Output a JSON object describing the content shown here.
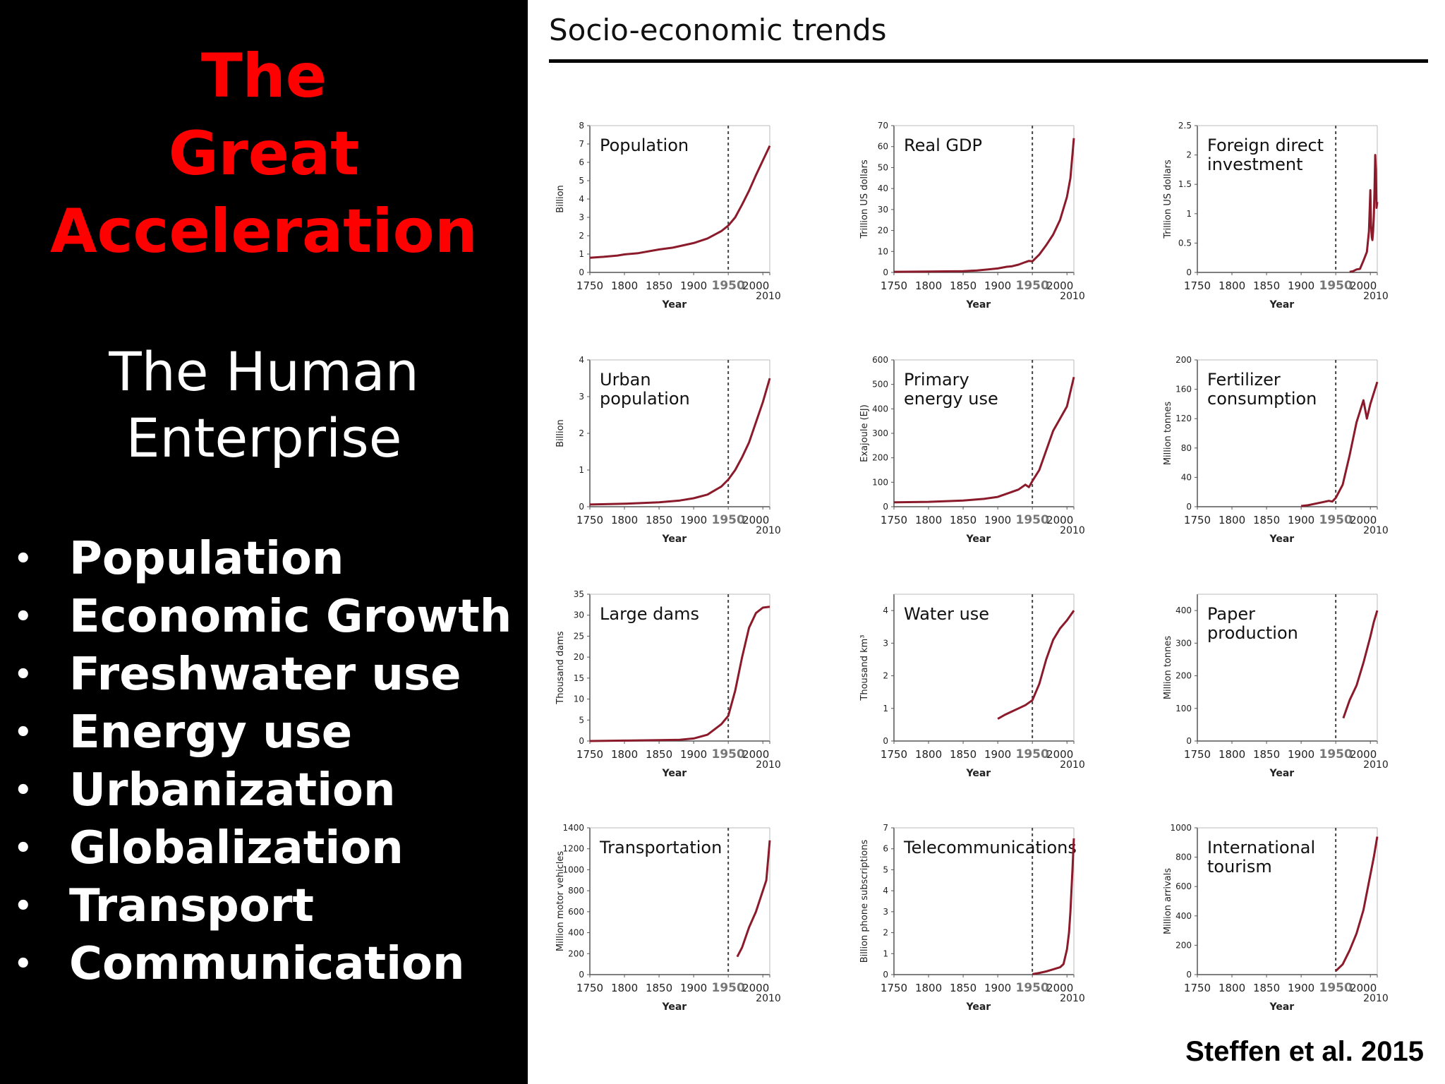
{
  "slide": {
    "title_lines": [
      "The",
      "Great",
      "Acceleration"
    ],
    "subtitle_lines": [
      "The Human",
      "Enterprise"
    ],
    "bullets": [
      "Population",
      "Economic Growth",
      "Freshwater use",
      "Energy use",
      "Urbanization",
      "Globalization",
      "Transport",
      "Communication"
    ],
    "bullet_symbol": "•",
    "colors": {
      "title": "#ff0000",
      "left_bg": "#000000",
      "line": "#8b1a2b"
    }
  },
  "figure": {
    "section_title": "Socio-economic trends",
    "citation": "Steffen et al. 2015"
  },
  "chart_data": [
    {
      "type": "line",
      "title": "Population",
      "ylabel": "Billion",
      "xlabel": "Year",
      "ylim": [
        0,
        8
      ],
      "yticks": [
        "0",
        "1",
        "2",
        "3",
        "4",
        "5",
        "6",
        "7",
        "8"
      ],
      "xticks": [
        "1750",
        "1800",
        "1850",
        "1900",
        "1950",
        "2000",
        "2010"
      ],
      "marker_year": 1950,
      "x": [
        1750,
        1770,
        1790,
        1800,
        1820,
        1850,
        1870,
        1900,
        1920,
        1940,
        1950,
        1960,
        1970,
        1980,
        1990,
        2000,
        2010
      ],
      "y": [
        0.8,
        0.85,
        0.92,
        0.98,
        1.05,
        1.25,
        1.35,
        1.6,
        1.85,
        2.25,
        2.55,
        3.0,
        3.7,
        4.45,
        5.3,
        6.1,
        6.9
      ]
    },
    {
      "type": "line",
      "title": "Real GDP",
      "ylabel": "Trillion US dollars",
      "xlabel": "Year",
      "ylim": [
        0,
        70
      ],
      "yticks": [
        "0",
        "10",
        "20",
        "30",
        "40",
        "50",
        "60",
        "70"
      ],
      "xticks": [
        "1750",
        "1800",
        "1850",
        "1900",
        "1950",
        "2000",
        "2010"
      ],
      "marker_year": 1950,
      "x": [
        1750,
        1800,
        1850,
        1870,
        1900,
        1913,
        1920,
        1930,
        1940,
        1945,
        1950,
        1960,
        1970,
        1980,
        1990,
        2000,
        2005,
        2010
      ],
      "y": [
        0.3,
        0.4,
        0.6,
        0.9,
        1.9,
        2.7,
        2.9,
        3.7,
        4.9,
        5.5,
        5.3,
        8.5,
        13,
        18,
        25,
        36,
        45,
        64
      ]
    },
    {
      "type": "line",
      "title": "Foreign direct\ninvestment",
      "ylabel": "Trillion US dollars",
      "xlabel": "Year",
      "ylim": [
        0,
        2.5
      ],
      "yticks": [
        "0",
        "0.5",
        "1",
        "1.5",
        "2",
        "2.5"
      ],
      "xticks": [
        "1750",
        "1800",
        "1850",
        "1900",
        "1950",
        "2000",
        "2010"
      ],
      "marker_year": 1950,
      "x": [
        1970,
        1975,
        1980,
        1985,
        1990,
        1995,
        1998,
        2000,
        2001,
        2002,
        2003,
        2004,
        2005,
        2006,
        2007,
        2008,
        2009,
        2010
      ],
      "y": [
        0.01,
        0.02,
        0.05,
        0.06,
        0.2,
        0.35,
        0.7,
        1.4,
        0.8,
        0.6,
        0.55,
        0.7,
        0.95,
        1.4,
        2.0,
        1.75,
        1.1,
        1.2
      ]
    },
    {
      "type": "line",
      "title": "Urban\npopulation",
      "ylabel": "Billion",
      "xlabel": "Year",
      "ylim": [
        0,
        4
      ],
      "yticks": [
        "0",
        "1",
        "2",
        "3",
        "4"
      ],
      "xticks": [
        "1750",
        "1800",
        "1850",
        "1900",
        "1950",
        "2000",
        "2010"
      ],
      "marker_year": 1950,
      "x": [
        1750,
        1800,
        1850,
        1880,
        1900,
        1920,
        1940,
        1950,
        1960,
        1970,
        1980,
        1990,
        2000,
        2010
      ],
      "y": [
        0.06,
        0.08,
        0.12,
        0.17,
        0.23,
        0.33,
        0.55,
        0.74,
        1.0,
        1.35,
        1.75,
        2.3,
        2.85,
        3.5
      ]
    },
    {
      "type": "line",
      "title": "Primary\nenergy use",
      "ylabel": "Exajoule (EJ)",
      "xlabel": "Year",
      "ylim": [
        0,
        600
      ],
      "yticks": [
        "0",
        "100",
        "200",
        "300",
        "400",
        "500",
        "600"
      ],
      "xticks": [
        "1750",
        "1800",
        "1850",
        "1900",
        "1950",
        "2000",
        "2010"
      ],
      "marker_year": 1950,
      "x": [
        1750,
        1800,
        1850,
        1880,
        1900,
        1920,
        1930,
        1940,
        1945,
        1950,
        1960,
        1970,
        1980,
        1990,
        2000,
        2010
      ],
      "y": [
        18,
        20,
        25,
        32,
        40,
        60,
        70,
        90,
        80,
        105,
        150,
        230,
        310,
        360,
        410,
        530
      ]
    },
    {
      "type": "line",
      "title": "Fertilizer\nconsumption",
      "ylabel": "Million tonnes",
      "xlabel": "Year",
      "ylim": [
        0,
        200
      ],
      "yticks": [
        "0",
        "40",
        "80",
        "120",
        "160",
        "200"
      ],
      "xticks": [
        "1750",
        "1800",
        "1850",
        "1900",
        "1950",
        "2000",
        "2010"
      ],
      "marker_year": 1950,
      "x": [
        1900,
        1910,
        1920,
        1930,
        1940,
        1945,
        1950,
        1960,
        1970,
        1980,
        1985,
        1990,
        1995,
        2000,
        2005,
        2010
      ],
      "y": [
        1,
        2,
        4,
        6,
        8,
        7,
        12,
        30,
        70,
        115,
        130,
        145,
        120,
        140,
        155,
        170
      ]
    },
    {
      "type": "line",
      "title": "Large dams",
      "ylabel": "Thousand dams",
      "xlabel": "Year",
      "ylim": [
        0,
        35
      ],
      "yticks": [
        "0",
        "5",
        "10",
        "15",
        "20",
        "25",
        "30",
        "35"
      ],
      "xticks": [
        "1750",
        "1800",
        "1850",
        "1900",
        "1950",
        "2000",
        "2010"
      ],
      "marker_year": 1950,
      "x": [
        1750,
        1800,
        1850,
        1880,
        1900,
        1920,
        1940,
        1950,
        1960,
        1970,
        1980,
        1990,
        2000,
        2010
      ],
      "y": [
        0,
        0.1,
        0.2,
        0.3,
        0.6,
        1.5,
        4,
        6,
        12,
        20,
        27,
        30.5,
        31.8,
        32
      ]
    },
    {
      "type": "line",
      "title": "Water use",
      "ylabel": "Thousand km³",
      "xlabel": "Year",
      "ylim": [
        0,
        4.5
      ],
      "yticks": [
        "0",
        "1",
        "2",
        "3",
        "4"
      ],
      "xticks": [
        "1750",
        "1800",
        "1850",
        "1900",
        "1950",
        "2000",
        "2010"
      ],
      "marker_year": 1950,
      "x": [
        1900,
        1910,
        1920,
        1930,
        1940,
        1950,
        1960,
        1970,
        1980,
        1990,
        2000,
        2010
      ],
      "y": [
        0.68,
        0.8,
        0.9,
        1.0,
        1.1,
        1.25,
        1.75,
        2.5,
        3.1,
        3.45,
        3.7,
        4.0
      ]
    },
    {
      "type": "line",
      "title": "Paper\nproduction",
      "ylabel": "Million tonnes",
      "xlabel": "Year",
      "ylim": [
        0,
        450
      ],
      "yticks": [
        "0",
        "100",
        "200",
        "300",
        "400"
      ],
      "xticks": [
        "1750",
        "1800",
        "1850",
        "1900",
        "1950",
        "2000",
        "2010"
      ],
      "marker_year": 1950,
      "x": [
        1961,
        1970,
        1980,
        1990,
        2000,
        2005,
        2010
      ],
      "y": [
        70,
        125,
        170,
        240,
        320,
        365,
        400
      ]
    },
    {
      "type": "line",
      "title": "Transportation",
      "ylabel": "Million motor vehicles",
      "xlabel": "Year",
      "ylim": [
        0,
        1400
      ],
      "yticks": [
        "0",
        "200",
        "400",
        "600",
        "800",
        "1000",
        "1200",
        "1400"
      ],
      "xticks": [
        "1750",
        "1800",
        "1850",
        "1900",
        "1950",
        "2000",
        "2010"
      ],
      "marker_year": 1950,
      "x": [
        1963,
        1970,
        1980,
        1990,
        1995,
        2000,
        2005,
        2010
      ],
      "y": [
        170,
        260,
        450,
        600,
        700,
        800,
        900,
        1280
      ]
    },
    {
      "type": "line",
      "title": "Telecommunications",
      "ylabel": "Billion phone subscriptions",
      "xlabel": "Year",
      "ylim": [
        0,
        7
      ],
      "yticks": [
        "0",
        "1",
        "2",
        "3",
        "4",
        "5",
        "6",
        "7"
      ],
      "xticks": [
        "1750",
        "1800",
        "1850",
        "1900",
        "1950",
        "2000",
        "2010"
      ],
      "marker_year": 1950,
      "x": [
        1950,
        1960,
        1970,
        1980,
        1990,
        1995,
        2000,
        2003,
        2005,
        2008,
        2010
      ],
      "y": [
        0.02,
        0.08,
        0.15,
        0.25,
        0.35,
        0.5,
        1.2,
        2.0,
        3.0,
        5.0,
        6.5
      ]
    },
    {
      "type": "line",
      "title": "International\ntourism",
      "ylabel": "Million arrivals",
      "xlabel": "Year",
      "ylim": [
        0,
        1000
      ],
      "yticks": [
        "0",
        "200",
        "400",
        "600",
        "800",
        "1000"
      ],
      "xticks": [
        "1750",
        "1800",
        "1850",
        "1900",
        "1950",
        "2000",
        "2010"
      ],
      "marker_year": 1950,
      "x": [
        1950,
        1960,
        1970,
        1980,
        1990,
        2000,
        2005,
        2010
      ],
      "y": [
        25,
        70,
        165,
        280,
        440,
        680,
        800,
        940
      ]
    }
  ]
}
